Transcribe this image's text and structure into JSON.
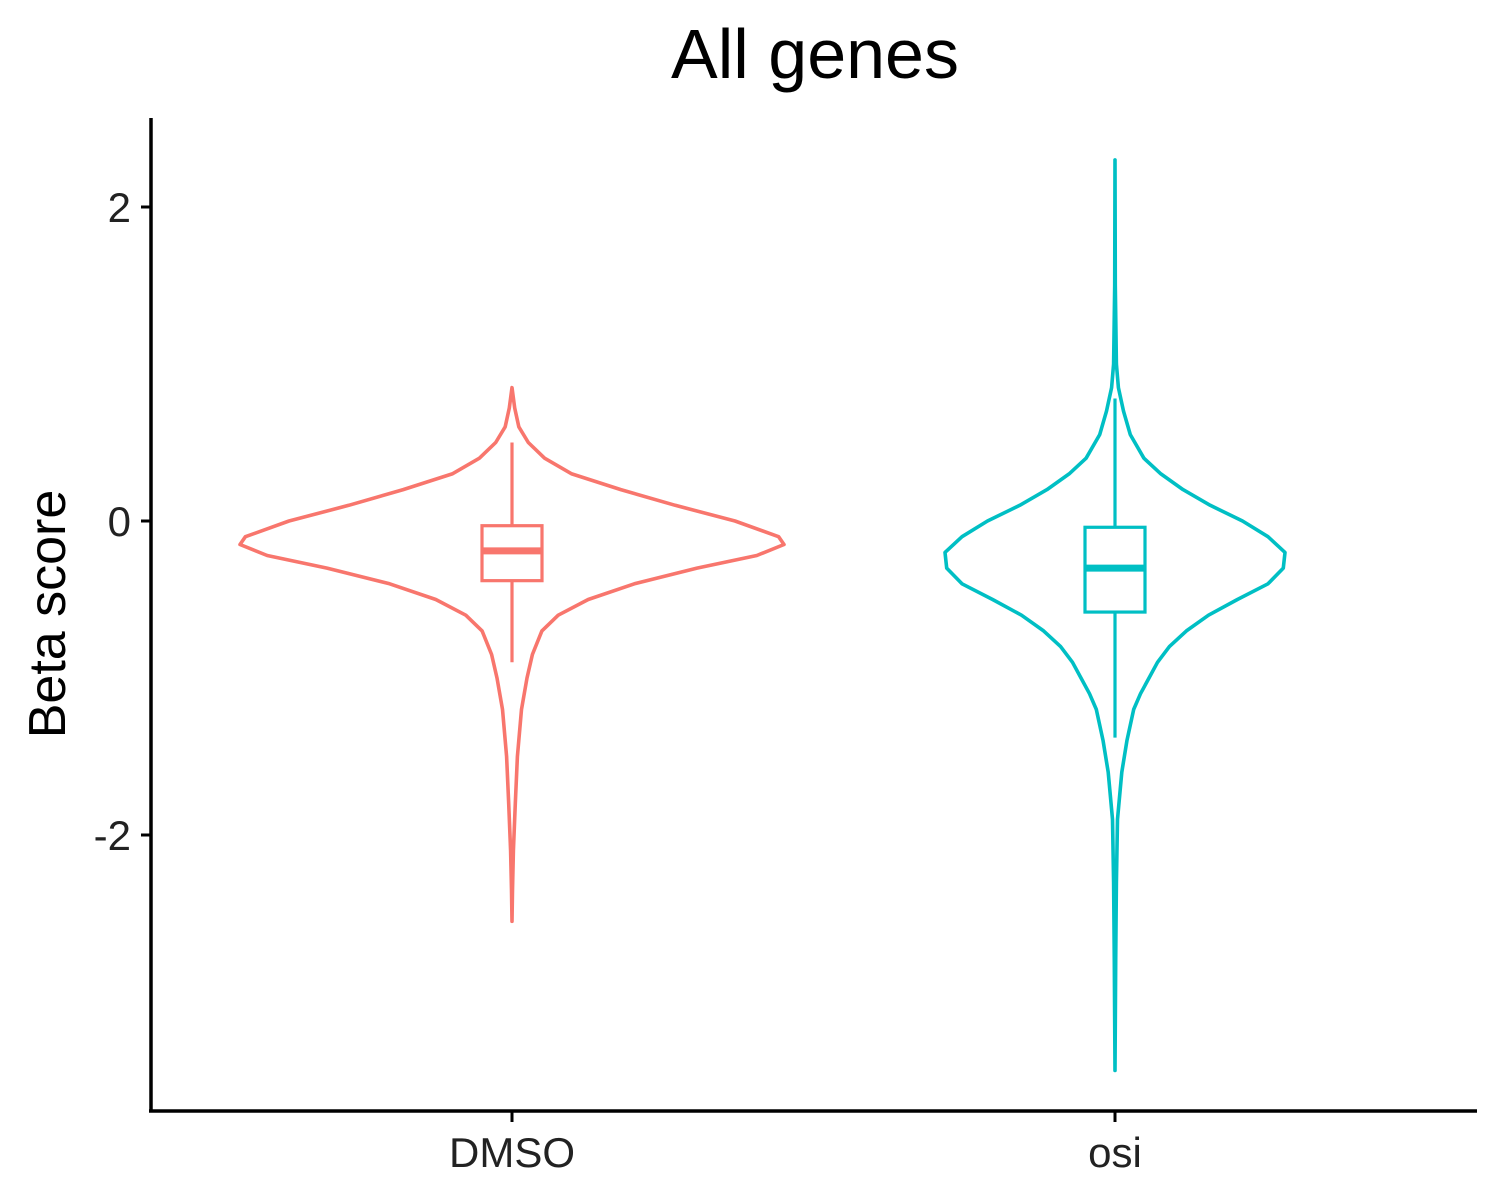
{
  "chart_data": {
    "type": "violin",
    "title": "All genes",
    "xlabel": "",
    "ylabel": "Beta score",
    "ylim": [
      -3.7,
      2.6
    ],
    "yticks": [
      2,
      0,
      -2
    ],
    "categories": [
      "DMSO",
      "osi"
    ],
    "grid": false,
    "legend": "none",
    "series": [
      {
        "category": "DMSO",
        "color": "#F8766D",
        "box": {
          "q1": -0.38,
          "median": -0.19,
          "q3": -0.03,
          "whisker_low": -0.9,
          "whisker_high": 0.5
        },
        "range": [
          -2.55,
          0.85
        ],
        "density_profile": [
          [
            0.85,
            0.0
          ],
          [
            0.72,
            0.01
          ],
          [
            0.6,
            0.025
          ],
          [
            0.5,
            0.06
          ],
          [
            0.4,
            0.12
          ],
          [
            0.3,
            0.22
          ],
          [
            0.2,
            0.4
          ],
          [
            0.1,
            0.6
          ],
          [
            0.0,
            0.82
          ],
          [
            -0.1,
            0.98
          ],
          [
            -0.15,
            1.0
          ],
          [
            -0.22,
            0.9
          ],
          [
            -0.3,
            0.68
          ],
          [
            -0.4,
            0.45
          ],
          [
            -0.5,
            0.28
          ],
          [
            -0.6,
            0.17
          ],
          [
            -0.7,
            0.11
          ],
          [
            -0.85,
            0.075
          ],
          [
            -1.0,
            0.055
          ],
          [
            -1.2,
            0.035
          ],
          [
            -1.5,
            0.02
          ],
          [
            -1.8,
            0.012
          ],
          [
            -2.1,
            0.005
          ],
          [
            -2.35,
            0.002
          ],
          [
            -2.55,
            0.0
          ]
        ]
      },
      {
        "category": "osi",
        "color": "#00BFC4",
        "box": {
          "q1": -0.58,
          "median": -0.3,
          "q3": -0.04,
          "whisker_low": -1.38,
          "whisker_high": 0.78
        },
        "range": [
          -3.5,
          2.3
        ],
        "density_profile": [
          [
            2.3,
            0.0
          ],
          [
            1.5,
            0.002
          ],
          [
            1.0,
            0.008
          ],
          [
            0.85,
            0.02
          ],
          [
            0.7,
            0.05
          ],
          [
            0.55,
            0.09
          ],
          [
            0.4,
            0.17
          ],
          [
            0.3,
            0.27
          ],
          [
            0.2,
            0.4
          ],
          [
            0.1,
            0.56
          ],
          [
            0.0,
            0.75
          ],
          [
            -0.1,
            0.9
          ],
          [
            -0.2,
            1.0
          ],
          [
            -0.3,
            0.99
          ],
          [
            -0.4,
            0.9
          ],
          [
            -0.5,
            0.72
          ],
          [
            -0.6,
            0.55
          ],
          [
            -0.7,
            0.42
          ],
          [
            -0.8,
            0.32
          ],
          [
            -0.9,
            0.25
          ],
          [
            -1.0,
            0.2
          ],
          [
            -1.1,
            0.15
          ],
          [
            -1.2,
            0.11
          ],
          [
            -1.4,
            0.07
          ],
          [
            -1.6,
            0.04
          ],
          [
            -1.9,
            0.015
          ],
          [
            -2.3,
            0.008
          ],
          [
            -2.8,
            0.004
          ],
          [
            -3.2,
            0.002
          ],
          [
            -3.5,
            0.0
          ]
        ]
      }
    ]
  }
}
